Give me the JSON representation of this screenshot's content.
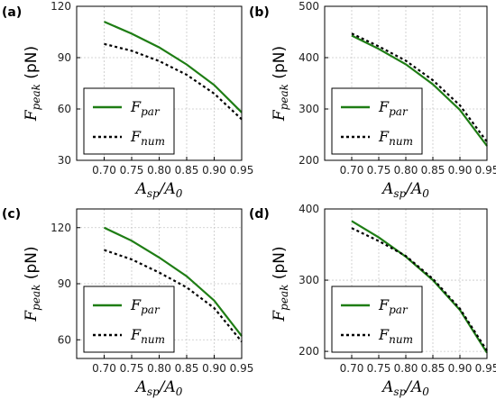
{
  "colors": {
    "par": "#1e7d14",
    "num": "#000000",
    "grid": "#c8c8c8"
  },
  "chart_data": [
    {
      "type": "line",
      "panel_label": "(a)",
      "xlabel": {
        "main": "A",
        "sub1": "sp",
        "mid": "/A",
        "sub2": "0"
      },
      "ylabel": {
        "main": "F",
        "sub": "peak",
        "unit": " (pN)"
      },
      "xlim": [
        0.65,
        0.95
      ],
      "ylim": [
        30,
        120
      ],
      "xticks": [
        "0.70",
        "0.75",
        "0.80",
        "0.85",
        "0.90",
        "0.95"
      ],
      "yticks": [
        "30",
        "60",
        "90",
        "120"
      ],
      "grid": true,
      "legend_position": "lower-left",
      "x": [
        0.7,
        0.75,
        0.8,
        0.85,
        0.9,
        0.95
      ],
      "series": [
        {
          "name": "par",
          "legend_main": "F",
          "legend_sub": "par",
          "style": "solid",
          "values": [
            111,
            104,
            96,
            86,
            74,
            58
          ]
        },
        {
          "name": "num",
          "legend_main": "F",
          "legend_sub": "num",
          "style": "dotted",
          "values": [
            98,
            94,
            88,
            80,
            69,
            54
          ]
        }
      ]
    },
    {
      "type": "line",
      "panel_label": "(b)",
      "xlabel": {
        "main": "A",
        "sub1": "sp",
        "mid": "/A",
        "sub2": "0"
      },
      "ylabel": {
        "main": "F",
        "sub": "peak",
        "unit": " (pN)"
      },
      "xlim": [
        0.65,
        0.95
      ],
      "ylim": [
        200,
        500
      ],
      "xticks": [
        "0.70",
        "0.75",
        "0.80",
        "0.85",
        "0.90",
        "0.95"
      ],
      "yticks": [
        "200",
        "300",
        "400",
        "500"
      ],
      "grid": true,
      "legend_position": "lower-left",
      "x": [
        0.7,
        0.75,
        0.8,
        0.85,
        0.9,
        0.95
      ],
      "series": [
        {
          "name": "par",
          "legend_main": "F",
          "legend_sub": "par",
          "style": "solid",
          "values": [
            443,
            417,
            387,
            348,
            298,
            228
          ]
        },
        {
          "name": "num",
          "legend_main": "F",
          "legend_sub": "num",
          "style": "dotted",
          "values": [
            447,
            422,
            394,
            356,
            307,
            236
          ]
        }
      ]
    },
    {
      "type": "line",
      "panel_label": "(c)",
      "xlabel": {
        "main": "A",
        "sub1": "sp",
        "mid": "/A",
        "sub2": "0"
      },
      "ylabel": {
        "main": "F",
        "sub": "peak",
        "unit": " (pN)"
      },
      "xlim": [
        0.65,
        0.95
      ],
      "ylim": [
        50,
        130
      ],
      "xticks": [
        "0.70",
        "0.75",
        "0.80",
        "0.85",
        "0.90",
        "0.95"
      ],
      "yticks": [
        "60",
        "90",
        "120"
      ],
      "grid": true,
      "legend_position": "lower-left",
      "x": [
        0.7,
        0.75,
        0.8,
        0.85,
        0.9,
        0.95
      ],
      "series": [
        {
          "name": "par",
          "legend_main": "F",
          "legend_sub": "par",
          "style": "solid",
          "values": [
            120,
            113,
            104,
            94,
            81,
            62
          ]
        },
        {
          "name": "num",
          "legend_main": "F",
          "legend_sub": "num",
          "style": "dotted",
          "values": [
            108,
            103,
            96,
            88,
            77,
            59
          ]
        }
      ]
    },
    {
      "type": "line",
      "panel_label": "(d)",
      "xlabel": {
        "main": "A",
        "sub1": "sp",
        "mid": "/A",
        "sub2": "0"
      },
      "ylabel": {
        "main": "F",
        "sub": "peak",
        "unit": " (pN)"
      },
      "xlim": [
        0.65,
        0.95
      ],
      "ylim": [
        190,
        400
      ],
      "xticks": [
        "0.70",
        "0.75",
        "0.80",
        "0.85",
        "0.90",
        "0.95"
      ],
      "yticks": [
        "200",
        "300",
        "400"
      ],
      "grid": true,
      "legend_position": "lower-left",
      "x": [
        0.7,
        0.75,
        0.8,
        0.85,
        0.9,
        0.95
      ],
      "series": [
        {
          "name": "par",
          "legend_main": "F",
          "legend_sub": "par",
          "style": "solid",
          "values": [
            383,
            360,
            333,
            300,
            258,
            198
          ]
        },
        {
          "name": "num",
          "legend_main": "F",
          "legend_sub": "num",
          "style": "dotted",
          "values": [
            373,
            355,
            334,
            302,
            260,
            201
          ]
        }
      ]
    }
  ]
}
